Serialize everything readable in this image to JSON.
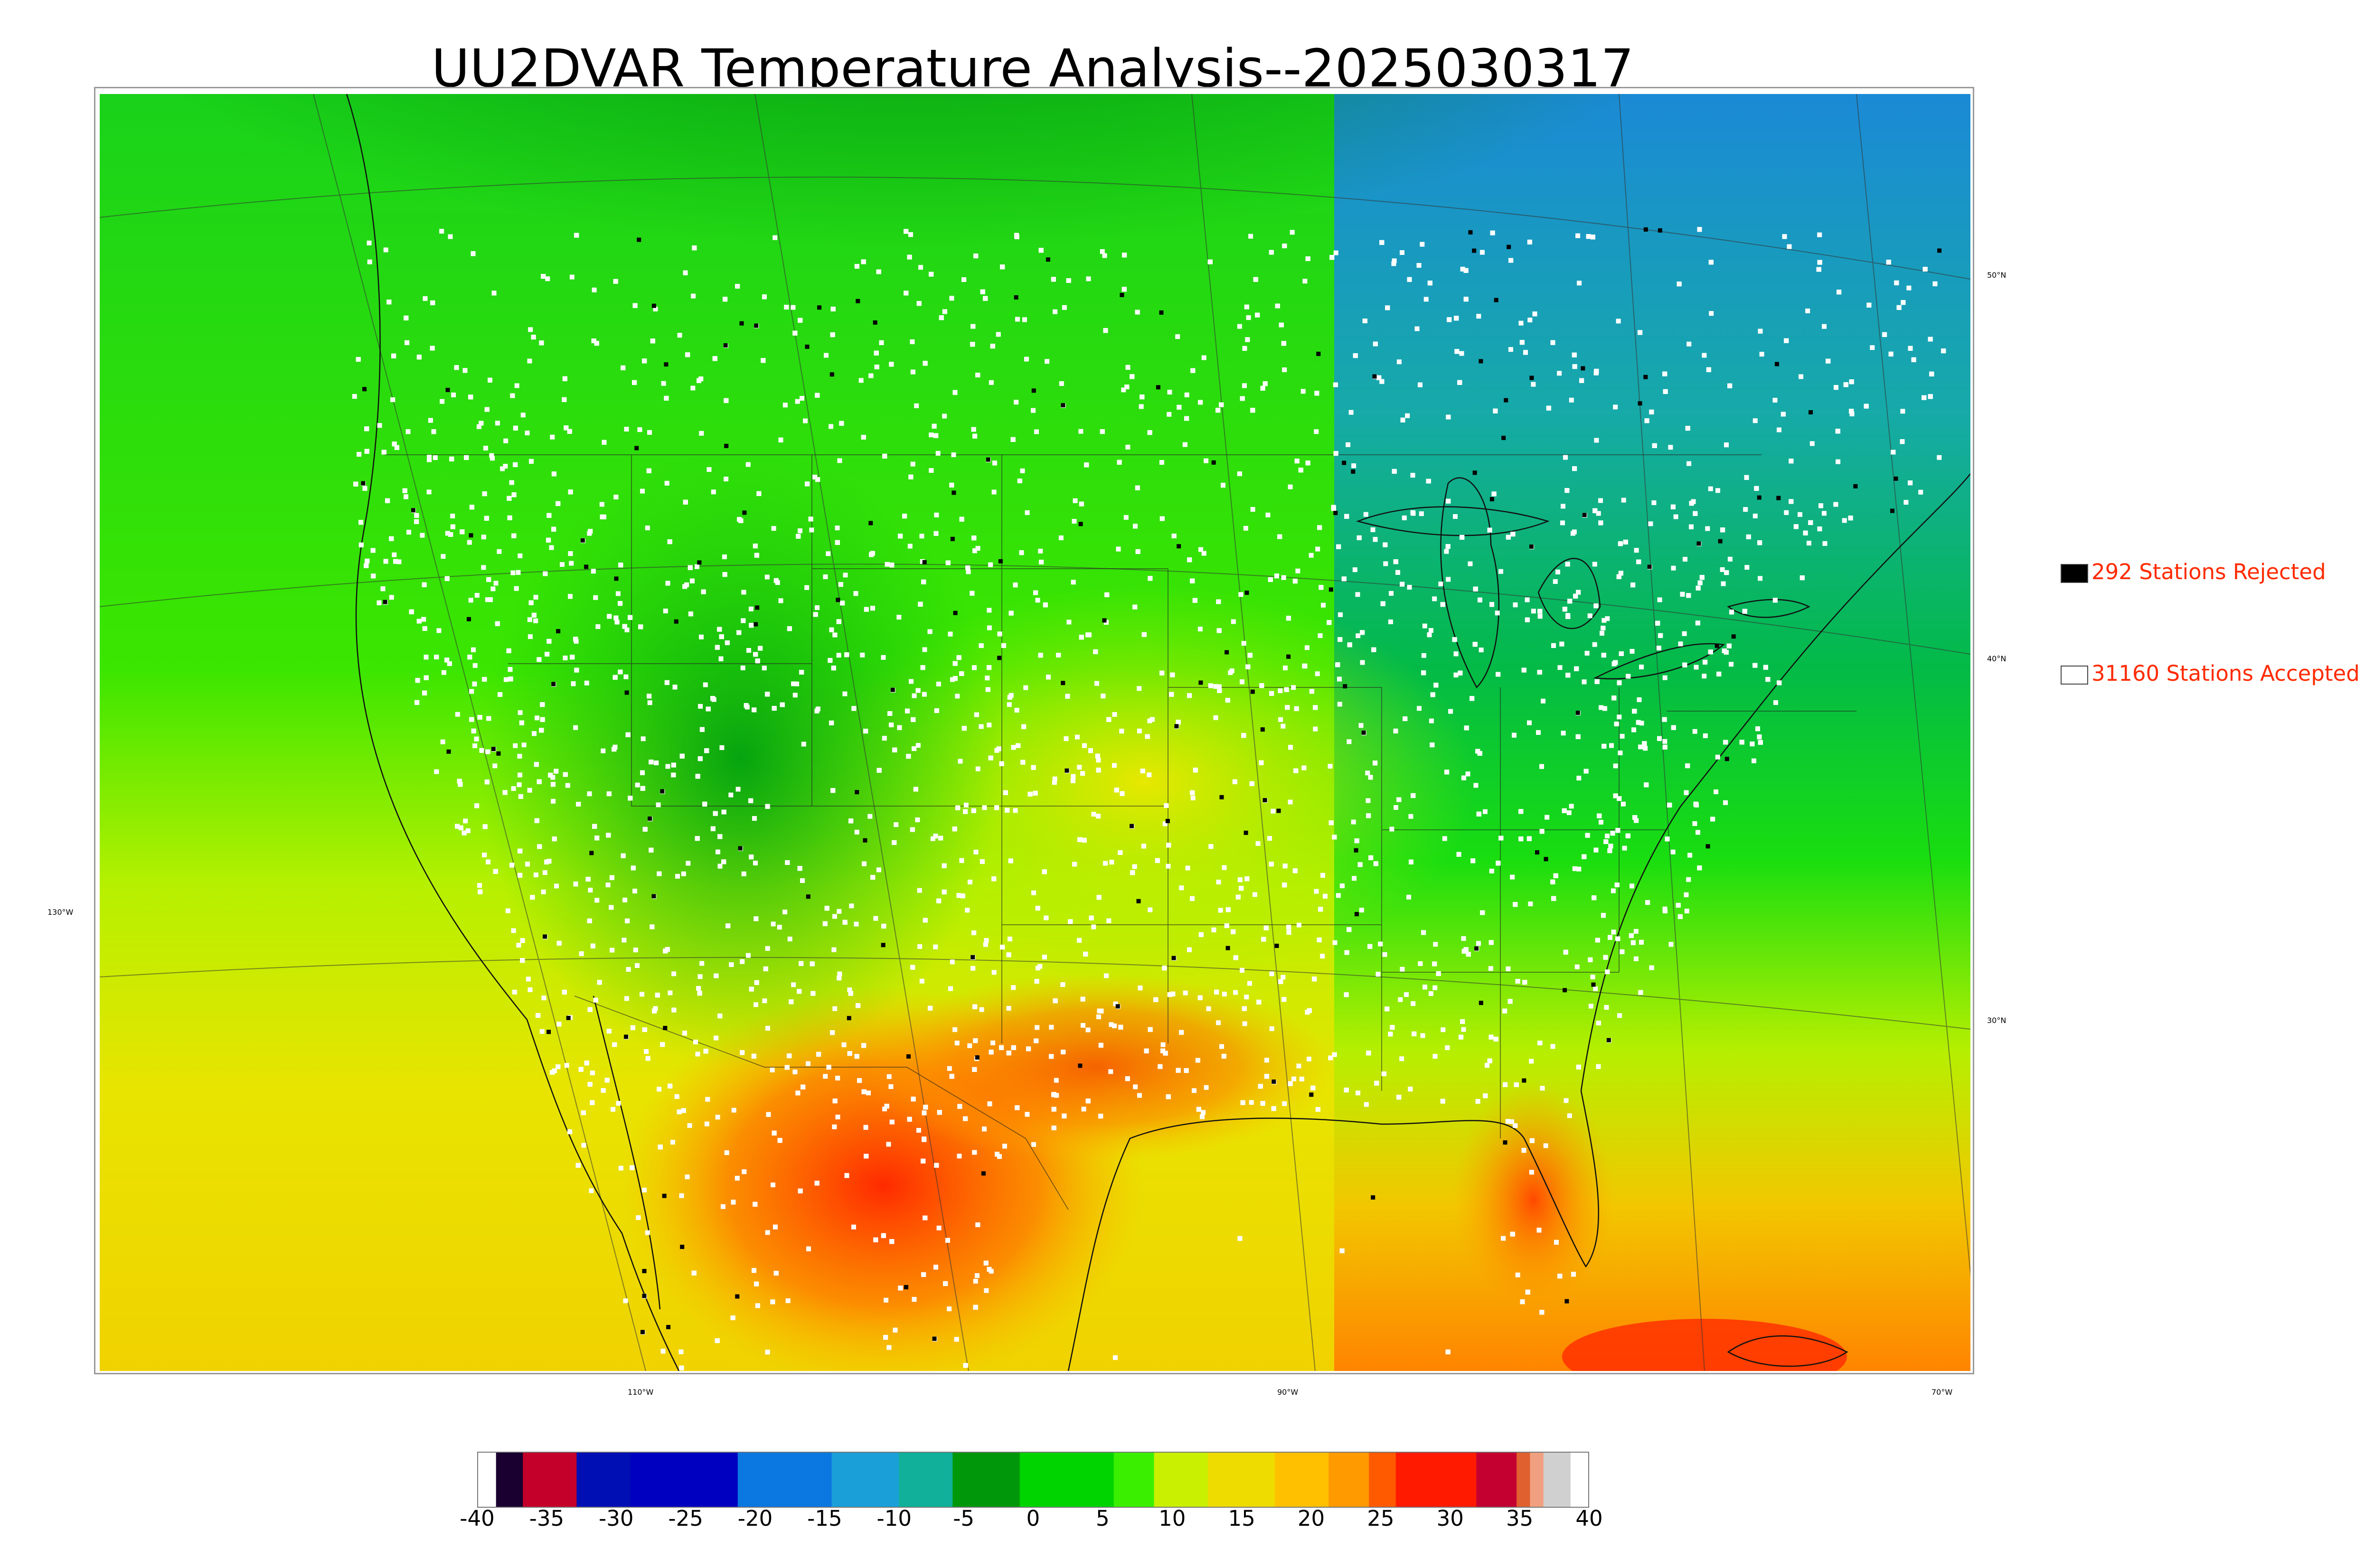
{
  "title": "UU2DVAR Temperature Analysis--2025030317",
  "graticule": {
    "latitudes": [
      {
        "label": "50°N",
        "value": 50
      },
      {
        "label": "40°N",
        "value": 40
      },
      {
        "label": "30°N",
        "value": 30
      }
    ],
    "longitudes": [
      {
        "label": "130°W",
        "value": -130
      },
      {
        "label": "110°W",
        "value": -110
      },
      {
        "label": "90°W",
        "value": -90
      },
      {
        "label": "70°W",
        "value": -70
      }
    ]
  },
  "legend": {
    "rejected": {
      "label": "292 Stations Rejected",
      "color": "#000000"
    },
    "accepted": {
      "label": "31160 Stations Accepted",
      "color": "#ffffff"
    }
  },
  "colorbar": {
    "ticks": [
      "-40",
      "-35",
      "-30",
      "-25",
      "-20",
      "-15",
      "-10",
      "-5",
      "0",
      "5",
      "10",
      "15",
      "20",
      "25",
      "30",
      "35",
      "40"
    ],
    "range": [
      -40,
      40
    ],
    "bands": [
      {
        "from": -40,
        "to": -38,
        "color": "#1a0030"
      },
      {
        "from": -38,
        "to": -34,
        "color": "#c4002a"
      },
      {
        "from": -34,
        "to": -30,
        "color": "#000fb3"
      },
      {
        "from": -30,
        "to": -22,
        "color": "#0000c0"
      },
      {
        "from": -22,
        "to": -15,
        "color": "#0a78e0"
      },
      {
        "from": -15,
        "to": -10,
        "color": "#1a9fd8"
      },
      {
        "from": -10,
        "to": -6,
        "color": "#10b09a"
      },
      {
        "from": -6,
        "to": -1,
        "color": "#00980a"
      },
      {
        "from": -1,
        "to": 6,
        "color": "#00d400"
      },
      {
        "from": 6,
        "to": 9,
        "color": "#3af000"
      },
      {
        "from": 9,
        "to": 13,
        "color": "#c8f000"
      },
      {
        "from": 13,
        "to": 18,
        "color": "#eedc00"
      },
      {
        "from": 18,
        "to": 22,
        "color": "#ffc000"
      },
      {
        "from": 22,
        "to": 25,
        "color": "#ff9a00"
      },
      {
        "from": 25,
        "to": 27,
        "color": "#ff5a00"
      },
      {
        "from": 27,
        "to": 33,
        "color": "#ff1a00"
      },
      {
        "from": 33,
        "to": 36,
        "color": "#c40030"
      },
      {
        "from": 36,
        "to": 37,
        "color": "#e06030"
      },
      {
        "from": 37,
        "to": 38,
        "color": "#f0a080"
      },
      {
        "from": 38,
        "to": 40,
        "color": "#d0d0d0"
      }
    ]
  }
}
